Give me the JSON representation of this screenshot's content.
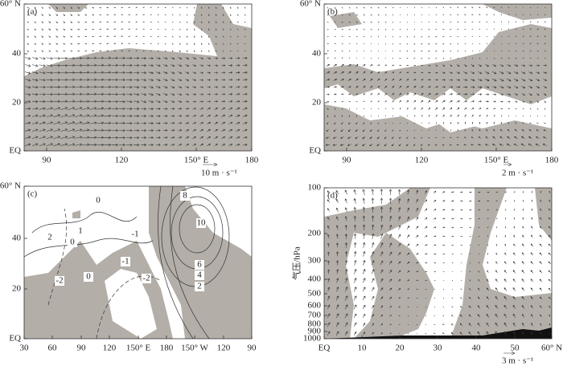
{
  "panels": [
    {
      "label": "(a)",
      "x_ticks": [
        "90",
        "120",
        "150° E",
        "180"
      ],
      "y_ticks": [
        "60° N",
        "40",
        "20",
        "EQ"
      ],
      "scale_label": "10  m · s⁻¹"
    },
    {
      "label": "(b)",
      "x_ticks": [
        "90",
        "120",
        "150° E",
        "180"
      ],
      "y_ticks": [
        "60° N",
        "40",
        "20",
        "EQ"
      ],
      "scale_label": "2  m · s⁻¹"
    },
    {
      "label": "(c)",
      "x_ticks": [
        "30",
        "60",
        "90",
        "120",
        "150° E",
        "180",
        "150° W",
        "120",
        "90"
      ],
      "y_ticks": [
        "60° N",
        "40",
        "20",
        "EQ"
      ],
      "contour_labels": [
        "0",
        "2",
        "1",
        "0",
        "-1",
        "-1",
        "8",
        "10",
        "6",
        "4",
        "2",
        "-2",
        "0",
        "-2"
      ]
    },
    {
      "label": "(d)",
      "x_ticks": [
        "EQ",
        "10",
        "20",
        "30",
        "40",
        "50",
        "60° N"
      ],
      "y_ticks": [
        "100",
        "200",
        "300",
        "400",
        "500",
        "600",
        "700",
        "800",
        "900",
        "1000"
      ],
      "y_label": "气压/hPa",
      "scale_label": "3  m · s⁻¹"
    }
  ]
}
